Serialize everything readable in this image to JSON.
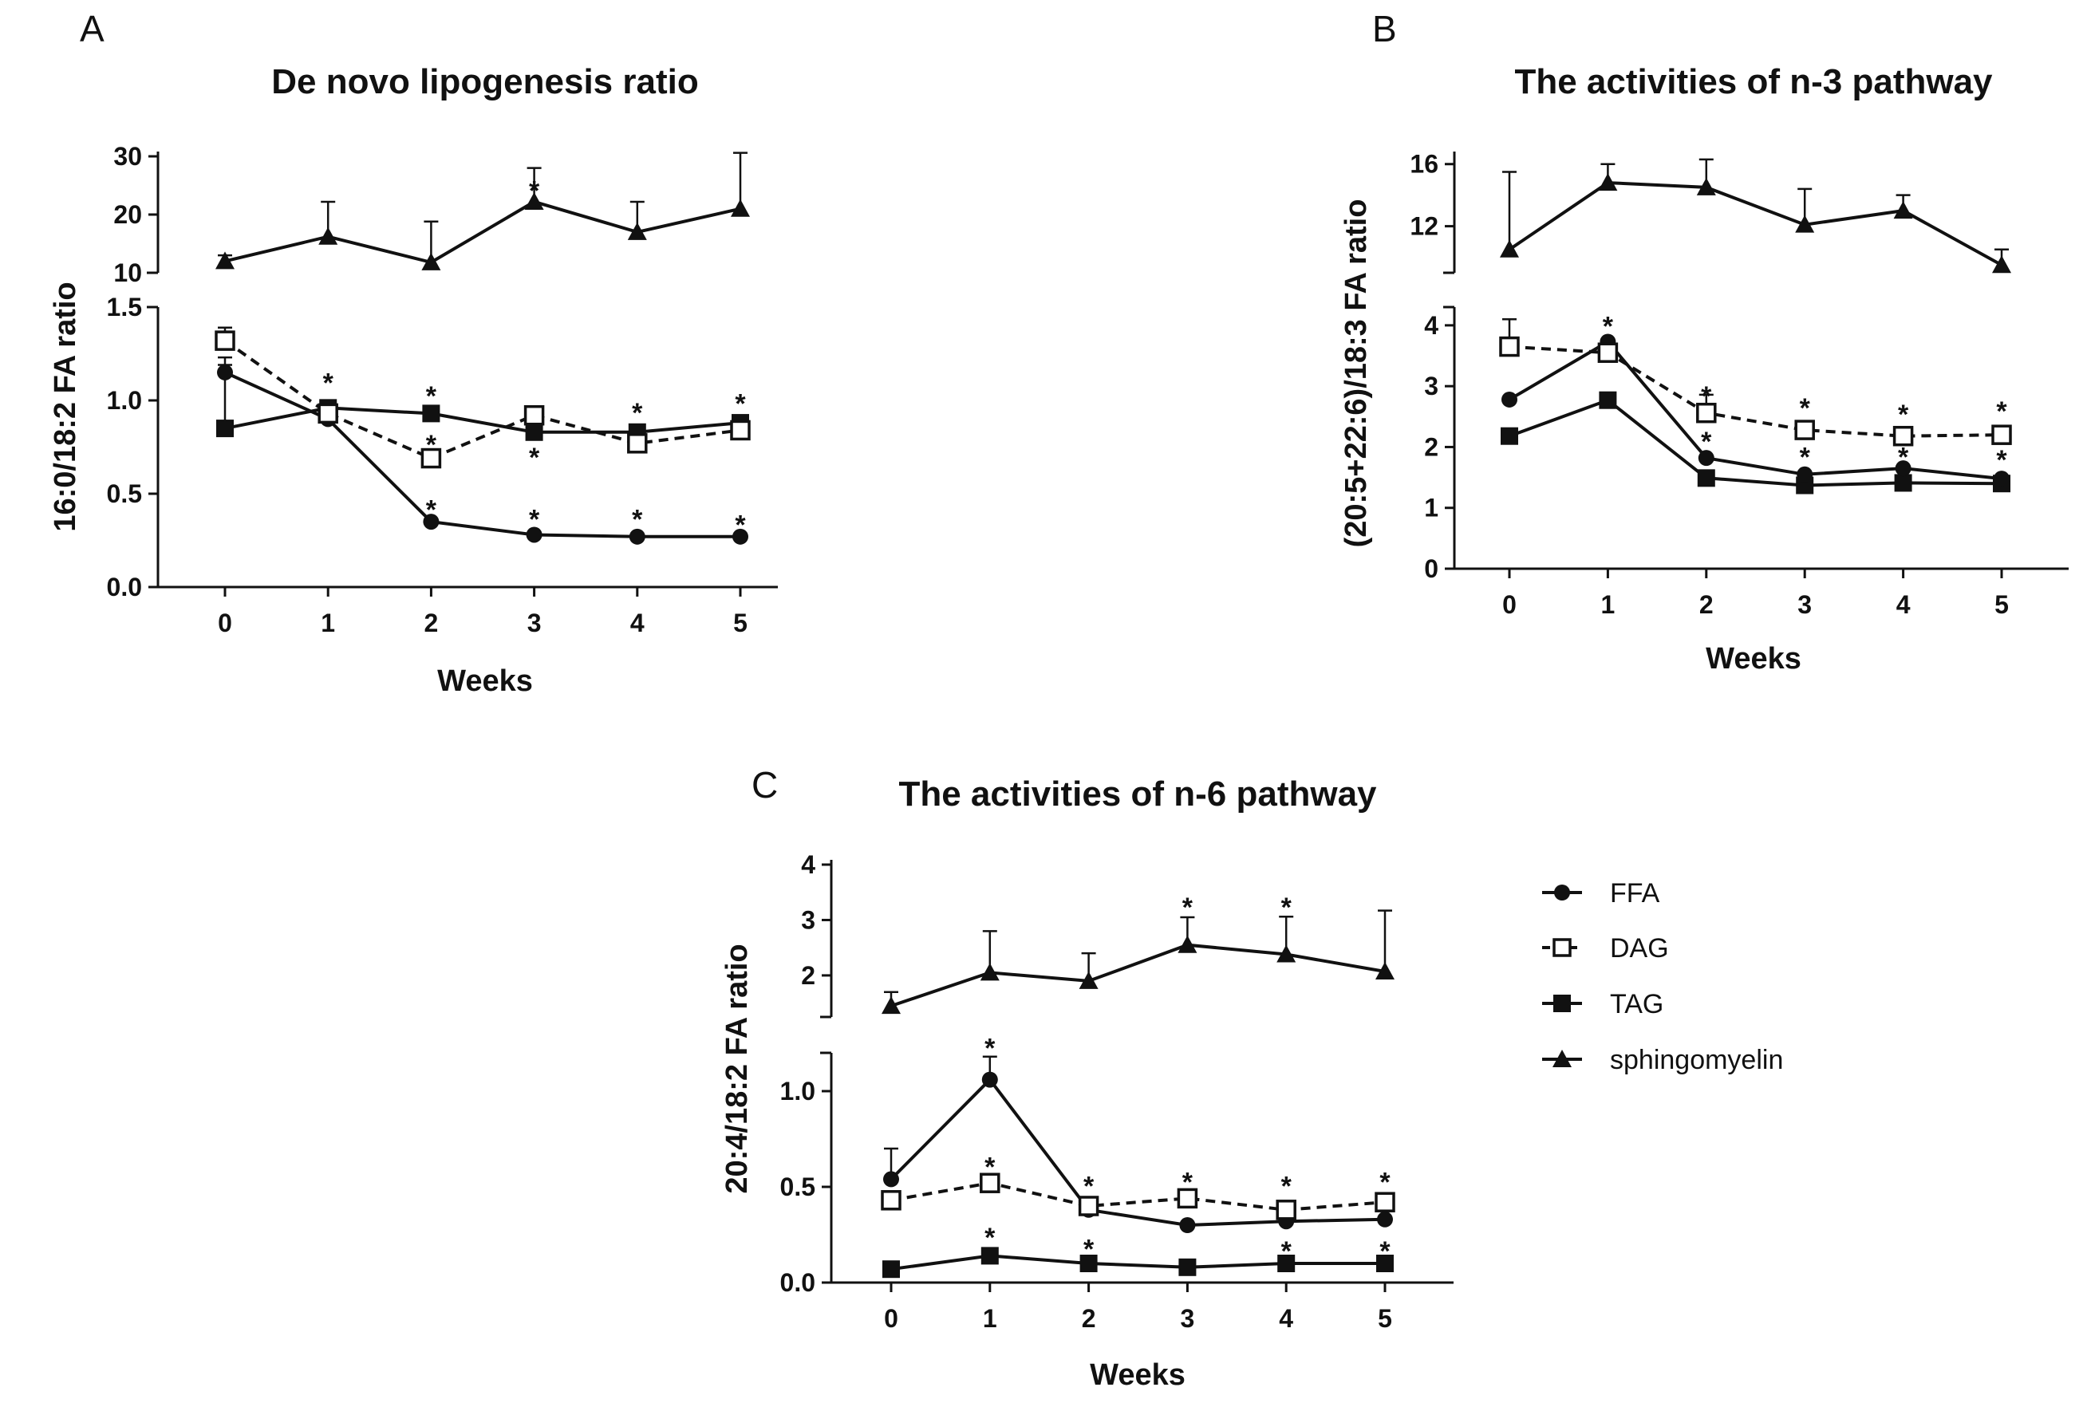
{
  "figure": {
    "legend": {
      "entries": [
        {
          "name": "FFA",
          "marker": "filled-circle",
          "line": "solid"
        },
        {
          "name": "DAG",
          "marker": "open-square",
          "line": "dashed"
        },
        {
          "name": "TAG",
          "marker": "filled-square",
          "line": "solid"
        },
        {
          "name": "sphingomyelin",
          "marker": "filled-triangle",
          "line": "solid"
        }
      ]
    }
  },
  "chart_data": [
    {
      "panel": "A",
      "type": "line",
      "title": "De novo lipogenesis ratio",
      "xlabel": "Weeks",
      "ylabel": "16:0/18:2 FA ratio",
      "x": [
        0,
        1,
        2,
        3,
        4,
        5
      ],
      "x_ticks": [
        "0",
        "1",
        "2",
        "3",
        "4",
        "5"
      ],
      "y_break": true,
      "upper_ylim": [
        10,
        30
      ],
      "upper_ticks": [
        "10",
        "20",
        "30"
      ],
      "lower_ylim": [
        0,
        1.5
      ],
      "lower_ticks": [
        "0.0",
        "0.5",
        "1.0",
        "1.5"
      ],
      "series": [
        {
          "name": "FFA",
          "segment": "lower",
          "values": [
            1.15,
            0.9,
            0.35,
            0.28,
            0.27,
            0.27
          ],
          "err": [
            0.08,
            0,
            0,
            0,
            0,
            0
          ]
        },
        {
          "name": "DAG",
          "segment": "lower",
          "values": [
            1.32,
            0.93,
            0.69,
            0.92,
            0.77,
            0.84
          ],
          "err": [
            0.07,
            0,
            0,
            0,
            0,
            0
          ]
        },
        {
          "name": "TAG",
          "segment": "lower",
          "values": [
            0.85,
            0.96,
            0.93,
            0.83,
            0.83,
            0.88
          ],
          "err": [
            0.34,
            0,
            0,
            0,
            0,
            0
          ]
        },
        {
          "name": "sphingomyelin",
          "segment": "upper",
          "values": [
            12,
            16.2,
            11.8,
            22.2,
            17,
            21
          ],
          "err": [
            1,
            6,
            7,
            5.8,
            5.2,
            9.6
          ]
        }
      ],
      "annotations": [
        {
          "text": "*",
          "x": 3,
          "segment": "upper",
          "y": 25.3
        },
        {
          "text": "*",
          "x": 1,
          "segment": "lower",
          "y": 1.13
        },
        {
          "text": "*",
          "x": 2,
          "segment": "lower",
          "y": 1.06
        },
        {
          "text": "*",
          "x": 2,
          "segment": "lower",
          "y": 0.8
        },
        {
          "text": "*",
          "x": 2,
          "segment": "lower",
          "y": 0.45
        },
        {
          "text": "*",
          "x": 3,
          "segment": "lower",
          "y": 0.73
        },
        {
          "text": "*",
          "x": 3,
          "segment": "lower",
          "y": 0.4
        },
        {
          "text": "*",
          "x": 4,
          "segment": "lower",
          "y": 0.97
        },
        {
          "text": "*",
          "x": 4,
          "segment": "lower",
          "y": 0.4
        },
        {
          "text": "*",
          "x": 5,
          "segment": "lower",
          "y": 1.02
        },
        {
          "text": "*",
          "x": 5,
          "segment": "lower",
          "y": 0.37
        }
      ]
    },
    {
      "panel": "B",
      "type": "line",
      "title": "The activities of n-3 pathway",
      "xlabel": "Weeks",
      "ylabel": "(20:5+22:6)/18:3 FA ratio",
      "x": [
        0,
        1,
        2,
        3,
        4,
        5
      ],
      "x_ticks": [
        "0",
        "1",
        "2",
        "3",
        "4",
        "5"
      ],
      "y_break": true,
      "upper_ylim": [
        9,
        16.5
      ],
      "upper_ticks": [
        "12",
        "16"
      ],
      "lower_ylim": [
        0,
        4.3
      ],
      "lower_ticks": [
        "0",
        "1",
        "2",
        "3",
        "4"
      ],
      "series": [
        {
          "name": "FFA",
          "segment": "lower",
          "values": [
            2.78,
            3.73,
            1.82,
            1.55,
            1.65,
            1.48
          ],
          "err": [
            0,
            0,
            0,
            0,
            0,
            0
          ]
        },
        {
          "name": "DAG",
          "segment": "lower",
          "values": [
            3.65,
            3.55,
            2.56,
            2.28,
            2.18,
            2.2
          ],
          "err": [
            0.45,
            0,
            0.3,
            0,
            0,
            0.15
          ]
        },
        {
          "name": "TAG",
          "segment": "lower",
          "values": [
            2.18,
            2.77,
            1.49,
            1.37,
            1.41,
            1.4
          ],
          "err": [
            0,
            0,
            0,
            0,
            0,
            0
          ]
        },
        {
          "name": "sphingomyelin",
          "segment": "upper",
          "values": [
            10.5,
            14.8,
            14.5,
            12.1,
            13,
            9.5
          ],
          "err": [
            5,
            1.2,
            1.8,
            2.3,
            1,
            1
          ]
        }
      ],
      "annotations": [
        {
          "text": "*",
          "x": 1,
          "segment": "lower",
          "y": 4.1
        },
        {
          "text": "*",
          "x": 2,
          "segment": "lower",
          "y": 2.95
        },
        {
          "text": "*",
          "x": 2,
          "segment": "lower",
          "y": 2.2
        },
        {
          "text": "*",
          "x": 3,
          "segment": "lower",
          "y": 2.75
        },
        {
          "text": "*",
          "x": 3,
          "segment": "lower",
          "y": 1.95
        },
        {
          "text": "*",
          "x": 4,
          "segment": "lower",
          "y": 2.65
        },
        {
          "text": "*",
          "x": 4,
          "segment": "lower",
          "y": 1.95
        },
        {
          "text": "*",
          "x": 5,
          "segment": "lower",
          "y": 2.7
        },
        {
          "text": "*",
          "x": 5,
          "segment": "lower",
          "y": 1.9
        }
      ]
    },
    {
      "panel": "C",
      "type": "line",
      "title": "The activities of n-6 pathway",
      "xlabel": "Weeks",
      "ylabel": "20:4/18:2 FA ratio",
      "x": [
        0,
        1,
        2,
        3,
        4,
        5
      ],
      "x_ticks": [
        "0",
        "1",
        "2",
        "3",
        "4",
        "5"
      ],
      "y_break": true,
      "upper_ylim": [
        1.25,
        4
      ],
      "upper_ticks": [
        "2",
        "3",
        "4"
      ],
      "lower_ylim": [
        0,
        1.2
      ],
      "lower_ticks": [
        "0.0",
        "0.5",
        "1.0"
      ],
      "series": [
        {
          "name": "FFA",
          "segment": "lower",
          "values": [
            0.54,
            1.06,
            0.38,
            0.3,
            0.32,
            0.33
          ],
          "err": [
            0.16,
            0.12,
            0,
            0,
            0,
            0
          ]
        },
        {
          "name": "DAG",
          "segment": "lower",
          "values": [
            0.43,
            0.52,
            0.4,
            0.44,
            0.38,
            0.42
          ],
          "err": [
            0,
            0,
            0,
            0,
            0,
            0
          ]
        },
        {
          "name": "TAG",
          "segment": "lower",
          "values": [
            0.07,
            0.14,
            0.1,
            0.08,
            0.1,
            0.1
          ],
          "err": [
            0,
            0,
            0,
            0,
            0,
            0
          ]
        },
        {
          "name": "sphingomyelin",
          "segment": "upper",
          "values": [
            1.45,
            2.05,
            1.9,
            2.55,
            2.38,
            2.07
          ],
          "err": [
            0.25,
            0.75,
            0.5,
            0.5,
            0.68,
            1.1
          ]
        }
      ],
      "annotations": [
        {
          "text": "*",
          "x": 3,
          "segment": "upper",
          "y": 3.35
        },
        {
          "text": "*",
          "x": 4,
          "segment": "upper",
          "y": 3.35
        },
        {
          "text": "*",
          "x": 1,
          "segment": "lower",
          "y": 1.26
        },
        {
          "text": "*",
          "x": 1,
          "segment": "lower",
          "y": 0.64
        },
        {
          "text": "*",
          "x": 1,
          "segment": "lower",
          "y": 0.27
        },
        {
          "text": "*",
          "x": 2,
          "segment": "lower",
          "y": 0.54
        },
        {
          "text": "*",
          "x": 2,
          "segment": "lower",
          "y": 0.21
        },
        {
          "text": "*",
          "x": 3,
          "segment": "lower",
          "y": 0.56
        },
        {
          "text": "*",
          "x": 4,
          "segment": "lower",
          "y": 0.54
        },
        {
          "text": "*",
          "x": 4,
          "segment": "lower",
          "y": 0.2
        },
        {
          "text": "*",
          "x": 5,
          "segment": "lower",
          "y": 0.56
        },
        {
          "text": "*",
          "x": 5,
          "segment": "lower",
          "y": 0.2
        }
      ]
    }
  ]
}
